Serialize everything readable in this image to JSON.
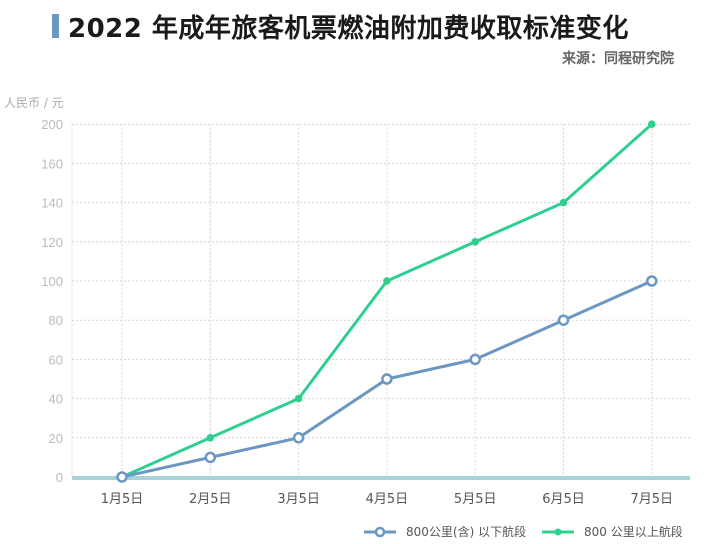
{
  "chart_data": {
    "type": "line",
    "title": "2022 年成年旅客机票燃油附加费收取标准变化",
    "source": "来源：同程研究院",
    "ylabel": "人民币 / 元",
    "xlabel": "",
    "categories": [
      "1月5日",
      "2月5日",
      "3月5日",
      "4月5日",
      "5月5日",
      "6月5日",
      "7月5日"
    ],
    "yticks": [
      0,
      20,
      40,
      60,
      80,
      100,
      120,
      140,
      160,
      200
    ],
    "ylim": [
      0,
      200
    ],
    "grid": true,
    "legend_position": "bottom-right",
    "series": [
      {
        "name": "800公里(含) 以下航段",
        "color": "#6b97c2",
        "marker": "hollow-circle",
        "values": [
          0,
          10,
          20,
          50,
          60,
          80,
          100
        ]
      },
      {
        "name": "800 公里以上航段",
        "color": "#2fd08f",
        "marker": "filled-circle",
        "values": [
          0,
          20,
          40,
          100,
          120,
          140,
          200
        ]
      }
    ],
    "axis_color": "#a9d3da"
  }
}
